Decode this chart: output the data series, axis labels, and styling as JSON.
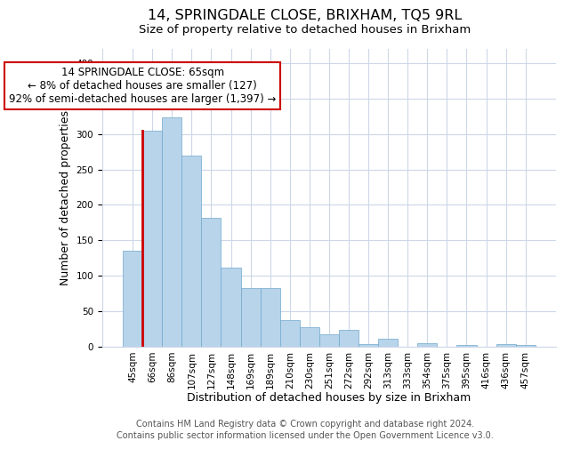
{
  "title": "14, SPRINGDALE CLOSE, BRIXHAM, TQ5 9RL",
  "subtitle": "Size of property relative to detached houses in Brixham",
  "xlabel": "Distribution of detached houses by size in Brixham",
  "ylabel": "Number of detached properties",
  "bar_labels": [
    "45sqm",
    "66sqm",
    "86sqm",
    "107sqm",
    "127sqm",
    "148sqm",
    "169sqm",
    "189sqm",
    "210sqm",
    "230sqm",
    "251sqm",
    "272sqm",
    "292sqm",
    "313sqm",
    "333sqm",
    "354sqm",
    "375sqm",
    "395sqm",
    "416sqm",
    "436sqm",
    "457sqm"
  ],
  "bar_values": [
    135,
    305,
    323,
    270,
    182,
    111,
    83,
    83,
    37,
    27,
    17,
    24,
    4,
    11,
    0,
    5,
    0,
    2,
    0,
    4,
    3
  ],
  "bar_color": "#b8d4ea",
  "bar_edge_color": "#6fa8cc",
  "highlight_bar_index": 1,
  "highlight_line_color": "#cc0000",
  "annotation_text_line1": "14 SPRINGDALE CLOSE: 65sqm",
  "annotation_text_line2": "← 8% of detached houses are smaller (127)",
  "annotation_text_line3": "92% of semi-detached houses are larger (1,397) →",
  "ylim": [
    0,
    420
  ],
  "yticks": [
    0,
    50,
    100,
    150,
    200,
    250,
    300,
    350,
    400
  ],
  "footer_line1": "Contains HM Land Registry data © Crown copyright and database right 2024.",
  "footer_line2": "Contains public sector information licensed under the Open Government Licence v3.0.",
  "background_color": "#ffffff",
  "grid_color": "#ccd8e8",
  "title_fontsize": 11.5,
  "subtitle_fontsize": 9.5,
  "axis_label_fontsize": 9,
  "tick_fontsize": 7.5,
  "footer_fontsize": 7,
  "annotation_fontsize": 8.5
}
